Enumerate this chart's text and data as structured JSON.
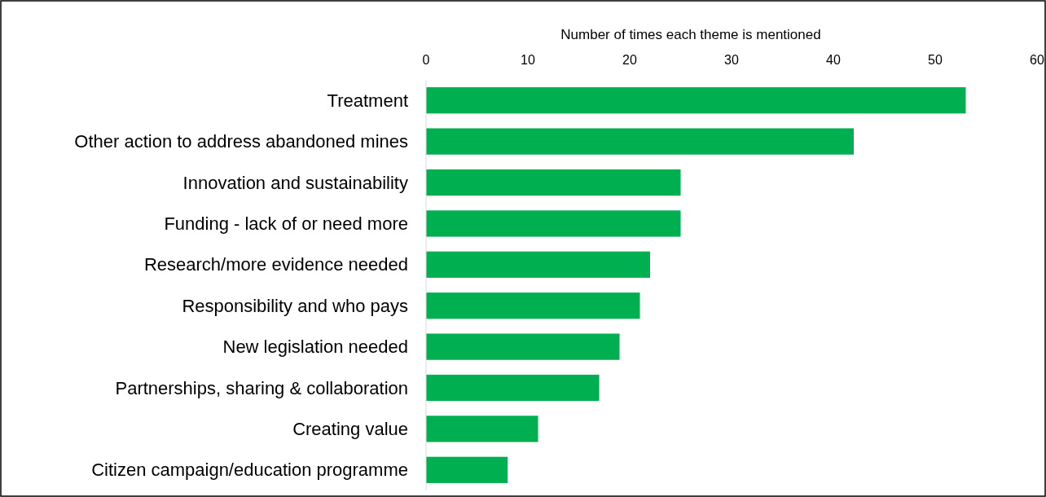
{
  "chart_data": {
    "type": "bar",
    "orientation": "horizontal",
    "xlabel": "Number of times each theme is mentioned",
    "categories": [
      "Treatment",
      "Other action to address abandoned mines",
      "Innovation and sustainability",
      "Funding - lack of or need more",
      "Research/more evidence needed",
      "Responsibility and who pays",
      "New legislation needed",
      "Partnerships, sharing & collaboration",
      "Creating value",
      "Citizen campaign/education programme"
    ],
    "values": [
      53,
      42,
      25,
      25,
      22,
      21,
      19,
      17,
      11,
      8
    ],
    "color": "#00b050",
    "xlim": [
      0,
      60
    ],
    "xticks": [
      0,
      10,
      20,
      30,
      40,
      50,
      60
    ],
    "grid": false
  }
}
